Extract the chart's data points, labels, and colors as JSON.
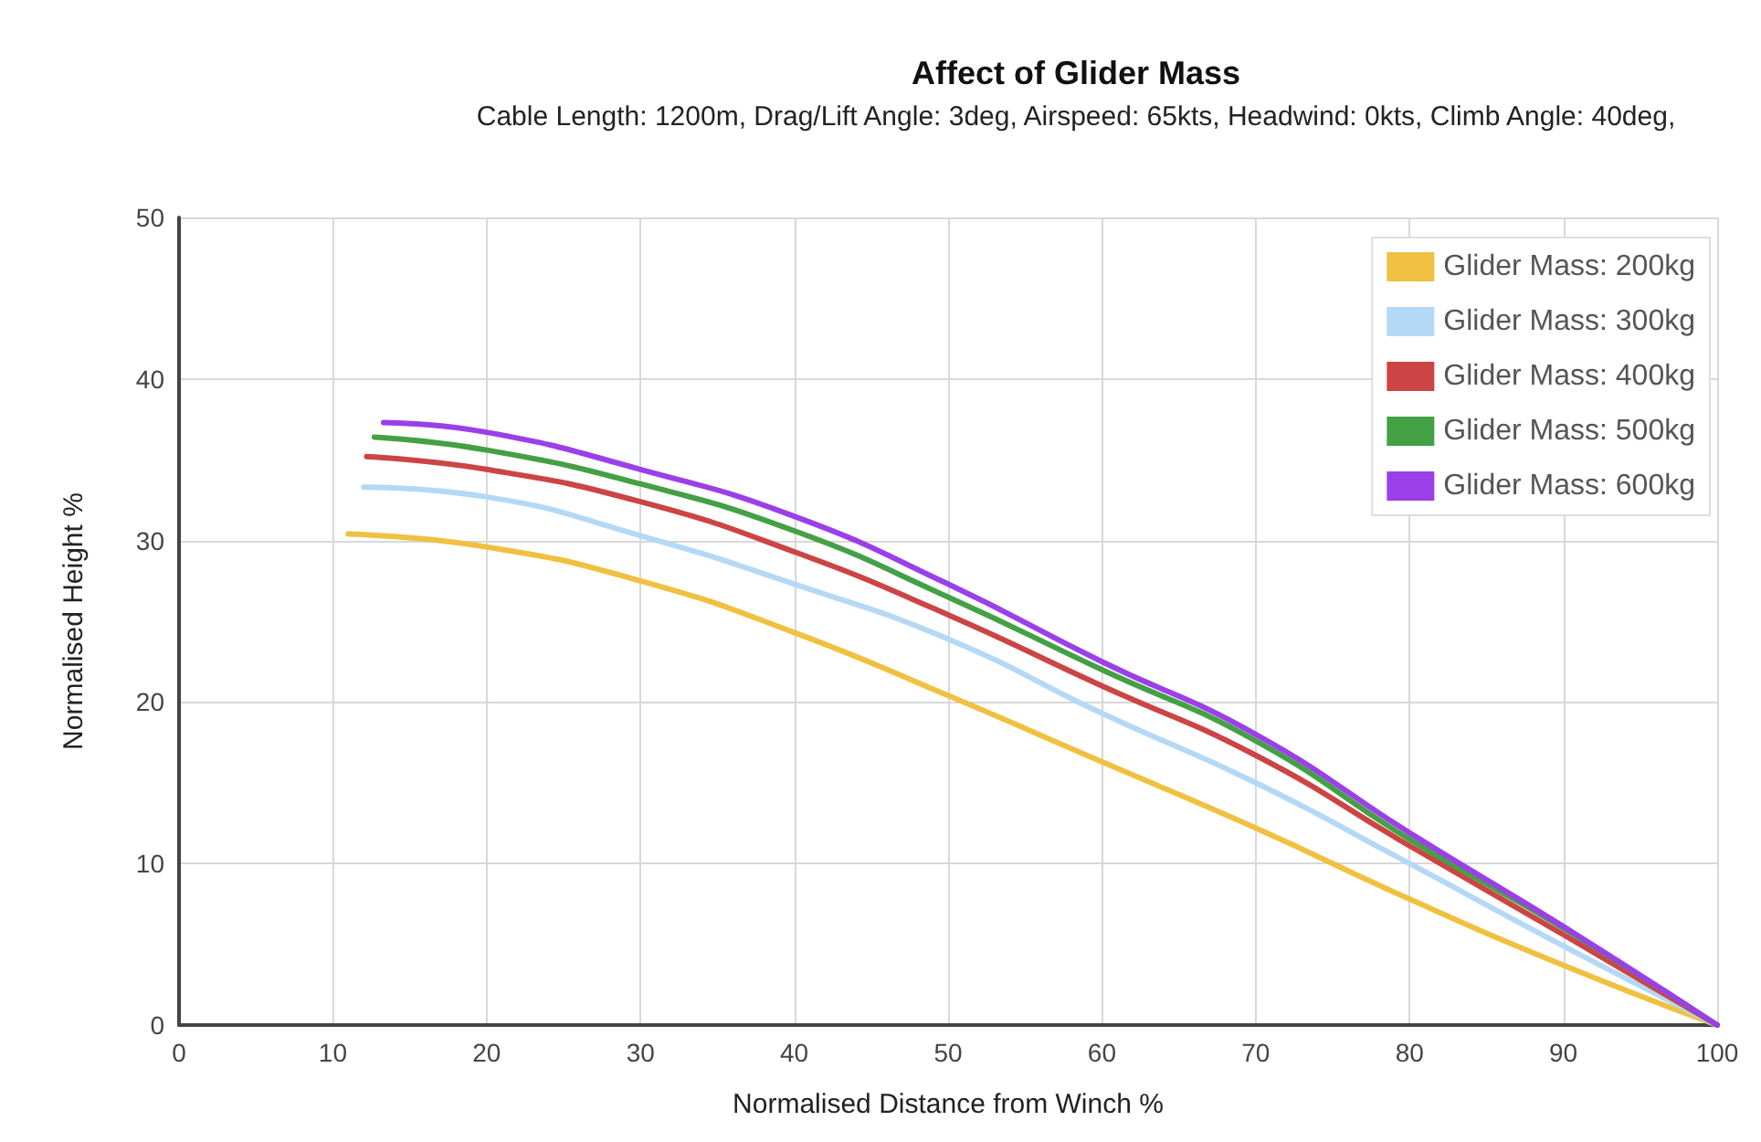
{
  "chart_data": {
    "type": "line",
    "title": "Affect of Glider Mass",
    "subtitle": "Cable Length: 1200m, Drag/Lift Angle: 3deg, Airspeed: 65kts, Headwind: 0kts, Climb Angle: 40deg,",
    "xlabel": "Normalised Distance from Winch %",
    "ylabel": "Normalised Height %",
    "xlim": [
      0,
      100
    ],
    "xticks": [
      0,
      10,
      20,
      30,
      40,
      50,
      60,
      70,
      80,
      90,
      100
    ],
    "ylim": [
      0,
      50
    ],
    "yticks": [
      0,
      10,
      20,
      30,
      40,
      50
    ],
    "grid": true,
    "legend": "top right",
    "marker": "none",
    "line_style": "solid",
    "series": [
      {
        "name": "Glider Mass: 200kg",
        "color": "#f0c040",
        "x": [
          11,
          20,
          30,
          40,
          50,
          60,
          70,
          80,
          90,
          100
        ],
        "values": [
          30.4,
          29.6,
          27.5,
          24.3,
          20.4,
          16.3,
          12.2,
          7.8,
          3.7,
          0
        ]
      },
      {
        "name": "Glider Mass: 300kg",
        "color": "#b3d9f7",
        "x": [
          12,
          20,
          30,
          40,
          50,
          60,
          70,
          80,
          90,
          100
        ],
        "values": [
          33.3,
          32.7,
          30.3,
          27.3,
          23.9,
          19.3,
          15,
          10,
          4.9,
          0
        ]
      },
      {
        "name": "Glider Mass: 400kg",
        "color": "#cc4444",
        "x": [
          12.2,
          20,
          30,
          40,
          50,
          60,
          70,
          80,
          90,
          100
        ],
        "values": [
          35.2,
          34.4,
          32.4,
          29.3,
          25.4,
          21,
          16.7,
          11.1,
          5.6,
          0
        ]
      },
      {
        "name": "Glider Mass: 500kg",
        "color": "#44a044",
        "x": [
          12.7,
          20,
          30,
          40,
          50,
          60,
          70,
          80,
          90,
          100
        ],
        "values": [
          36.4,
          35.6,
          33.5,
          30.6,
          26.5,
          22,
          17.6,
          11.5,
          6,
          0
        ]
      },
      {
        "name": "Glider Mass: 600kg",
        "color": "#9b40e8",
        "x": [
          13.3,
          20,
          30,
          40,
          50,
          60,
          70,
          80,
          90,
          100
        ],
        "values": [
          37.3,
          36.7,
          34.4,
          31.5,
          27.3,
          22.5,
          18,
          11.9,
          6.1,
          0
        ]
      }
    ]
  }
}
